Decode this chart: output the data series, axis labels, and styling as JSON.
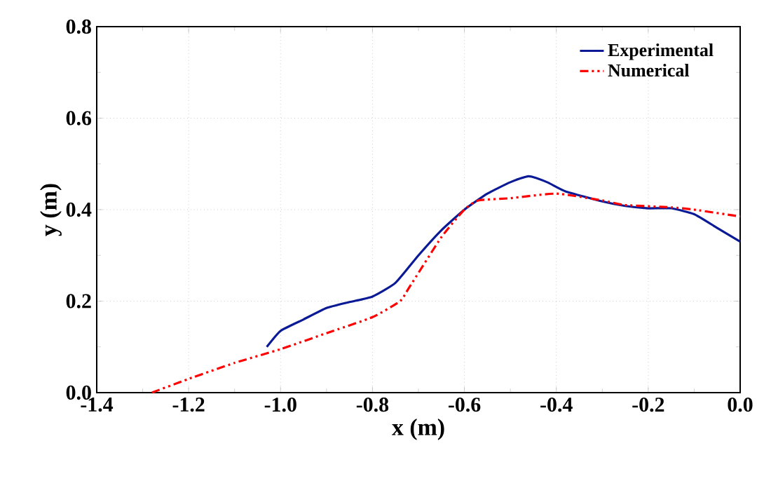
{
  "chart_data": {
    "type": "line",
    "xlabel": "x (m)",
    "ylabel": "y (m)",
    "xlim": [
      -1.4,
      0.0
    ],
    "ylim": [
      0.0,
      0.8
    ],
    "xticks": [
      -1.4,
      -1.2,
      {
        "value": -1.0,
        "label": "-1.0"
      },
      -0.8,
      -0.6,
      -0.4,
      -0.2,
      {
        "value": 0.0,
        "label": "0.0"
      }
    ],
    "yticks": [
      {
        "value": 0.0,
        "label": "0.0"
      },
      0.2,
      0.4,
      0.6,
      0.8
    ],
    "grid": true,
    "legend": "top right",
    "series": [
      {
        "name": "Experimental",
        "color": "#0a1a96",
        "line_style": "solid",
        "x": [
          -1.03,
          -1.0,
          -0.95,
          -0.9,
          -0.85,
          -0.8,
          -0.75,
          -0.7,
          -0.65,
          -0.6,
          -0.55,
          -0.5,
          -0.46,
          -0.42,
          -0.38,
          -0.3,
          -0.25,
          -0.2,
          -0.15,
          -0.1,
          -0.05,
          0.0
        ],
        "values": [
          0.1,
          0.135,
          0.16,
          0.185,
          0.198,
          0.21,
          0.24,
          0.3,
          0.355,
          0.4,
          0.435,
          0.46,
          0.473,
          0.46,
          0.44,
          0.418,
          0.408,
          0.403,
          0.403,
          0.39,
          0.36,
          0.33
        ]
      },
      {
        "name": "Numerical",
        "color": "#ff0000",
        "line_style": "dashdotdot",
        "x": [
          -1.28,
          -1.2,
          -1.1,
          -1.0,
          -0.9,
          -0.8,
          -0.74,
          -0.72,
          -0.65,
          -0.6,
          -0.57,
          -0.5,
          -0.4,
          -0.3,
          -0.25,
          -0.15,
          -0.1,
          0.0
        ],
        "values": [
          0.0,
          0.03,
          0.065,
          0.095,
          0.13,
          0.165,
          0.2,
          0.23,
          0.34,
          0.4,
          0.42,
          0.425,
          0.435,
          0.42,
          0.41,
          0.405,
          0.4,
          0.385
        ]
      }
    ]
  }
}
